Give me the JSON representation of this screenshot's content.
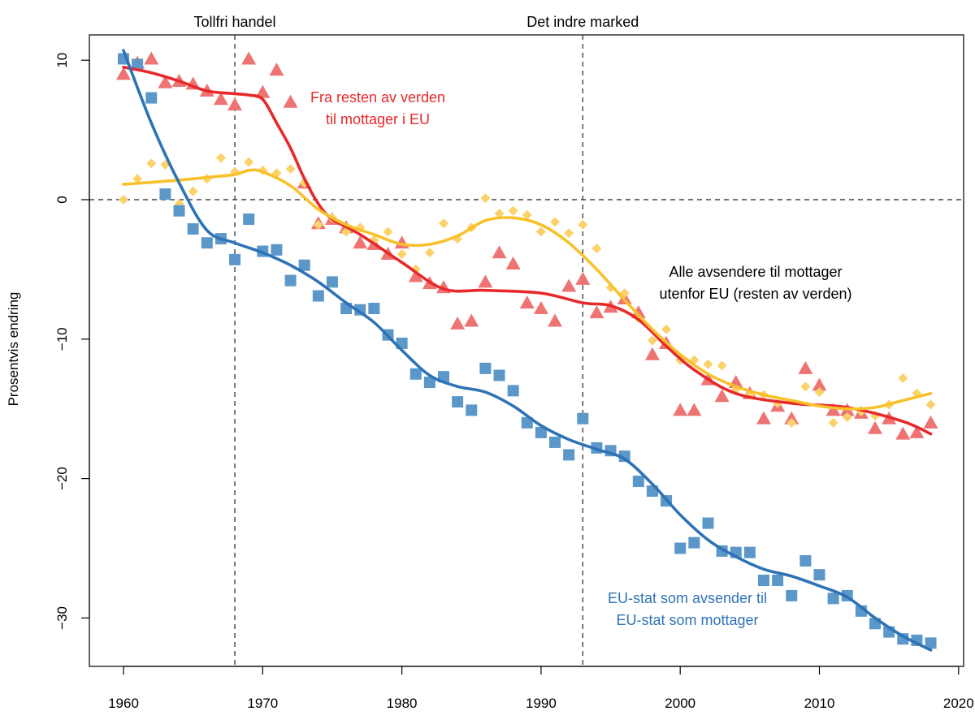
{
  "chart_data": {
    "type": "scatter",
    "ylabel": "Prosentvis endring",
    "xlabel": "",
    "xlim": [
      1960,
      2020
    ],
    "ylim": [
      -33,
      11
    ],
    "x_ticks": [
      1960,
      1970,
      1980,
      1990,
      2000,
      2010,
      2020
    ],
    "y_ticks": [
      10,
      0,
      -10,
      -20,
      -30
    ],
    "y_tick_labels": [
      "10",
      "0",
      "−10",
      "−20",
      "−30"
    ],
    "reference_lines": [
      {
        "axis": "x",
        "value": 1968,
        "label": "Tollfri handel"
      },
      {
        "axis": "x",
        "value": 1993,
        "label": "Det indre marked"
      },
      {
        "axis": "y",
        "value": 0,
        "label": ""
      }
    ],
    "series": [
      {
        "name": "Fra resten av verden til mottager i EU",
        "label_lines": [
          "Fra resten av verden",
          "til mottager i EU"
        ],
        "color": "#e8292b",
        "marker_color": "#ee7474",
        "marker": "triangle",
        "x": [
          1960,
          1961,
          1962,
          1963,
          1964,
          1965,
          1966,
          1967,
          1968,
          1969,
          1970,
          1971,
          1972,
          1973,
          1974,
          1975,
          1976,
          1977,
          1978,
          1979,
          1980,
          1981,
          1982,
          1983,
          1984,
          1985,
          1986,
          1987,
          1988,
          1989,
          1990,
          1991,
          1992,
          1993,
          1994,
          1995,
          1996,
          1997,
          1998,
          1999,
          2000,
          2001,
          2002,
          2003,
          2004,
          2005,
          2006,
          2007,
          2008,
          2009,
          2010,
          2011,
          2012,
          2013,
          2014,
          2015,
          2016,
          2017,
          2018
        ],
        "y": [
          9.0,
          9.8,
          10.1,
          8.4,
          8.5,
          8.3,
          7.8,
          7.2,
          6.8,
          10.1,
          7.7,
          9.3,
          7.0,
          1.2,
          -1.7,
          -1.4,
          -2.0,
          -3.1,
          -3.2,
          -3.9,
          -3.1,
          -5.5,
          -6.0,
          -6.3,
          -8.9,
          -8.7,
          -5.9,
          -3.8,
          -4.6,
          -7.4,
          -7.8,
          -8.7,
          -6.2,
          -5.7,
          -8.1,
          -7.7,
          -7.1,
          -8.1,
          -11.1,
          -10.3,
          -15.1,
          -15.1,
          -12.9,
          -14.1,
          -13.1,
          -13.9,
          -15.7,
          -14.8,
          -15.7,
          -12.1,
          -13.3,
          -15.1,
          -15.1,
          -15.3,
          -16.4,
          -15.7,
          -16.8,
          -16.7,
          -16.0
        ],
        "trend_x": [
          1960,
          1962,
          1964,
          1966,
          1968,
          1969,
          1970,
          1971,
          1972,
          1973,
          1974,
          1975,
          1977,
          1980,
          1983,
          1986,
          1990,
          1993,
          1995,
          1997,
          1999,
          2001,
          2004,
          2008,
          2012,
          2016,
          2018
        ],
        "trend_y": [
          9.5,
          9.1,
          8.5,
          7.8,
          7.6,
          7.5,
          7.2,
          5.5,
          3.7,
          1.5,
          -0.3,
          -1.4,
          -2.5,
          -4.5,
          -6.4,
          -6.5,
          -6.7,
          -7.4,
          -7.6,
          -8.6,
          -10.5,
          -12.2,
          -13.9,
          -14.6,
          -14.9,
          -15.9,
          -16.8
        ]
      },
      {
        "name": "Alle avsendere til mottager utenfor EU (resten av verden)",
        "label_lines": [
          "Alle avsendere til mottager",
          "utenfor EU (resten av verden)"
        ],
        "color": "#f8c12b",
        "marker_color": "#fbd26a",
        "marker": "diamond",
        "x": [
          1960,
          1961,
          1962,
          1963,
          1964,
          1965,
          1966,
          1967,
          1968,
          1969,
          1970,
          1971,
          1972,
          1973,
          1974,
          1975,
          1976,
          1977,
          1978,
          1979,
          1980,
          1981,
          1982,
          1983,
          1984,
          1985,
          1986,
          1987,
          1988,
          1989,
          1990,
          1991,
          1992,
          1993,
          1994,
          1995,
          1996,
          1997,
          1998,
          1999,
          2000,
          2001,
          2002,
          2003,
          2004,
          2005,
          2006,
          2007,
          2008,
          2009,
          2010,
          2011,
          2012,
          2013,
          2014,
          2015,
          2016,
          2017,
          2018
        ],
        "y": [
          0.0,
          1.5,
          2.6,
          2.5,
          -0.3,
          0.6,
          1.5,
          3.0,
          2.0,
          2.7,
          2.1,
          1.9,
          2.2,
          1.2,
          -1.8,
          -1.3,
          -2.3,
          -2.0,
          -2.9,
          -2.3,
          -3.9,
          -5.0,
          -3.8,
          -1.7,
          -2.8,
          -2.0,
          0.1,
          -1.0,
          -0.8,
          -1.1,
          -2.3,
          -1.6,
          -2.4,
          -1.8,
          -3.5,
          -6.3,
          -6.7,
          -8.5,
          -10.1,
          -9.3,
          -11.5,
          -11.5,
          -11.8,
          -11.9,
          -13.6,
          -14.0,
          -14.0,
          -14.6,
          -16.0,
          -13.4,
          -13.8,
          -16.0,
          -15.6,
          -15.2,
          -15.5,
          -14.7,
          -12.8,
          -13.9,
          -14.7
        ],
        "trend_x": [
          1960,
          1964,
          1966,
          1968,
          1969,
          1970,
          1972,
          1974,
          1976,
          1978,
          1980,
          1982,
          1984,
          1986,
          1988,
          1990,
          1992,
          1994,
          1996,
          1998,
          2000,
          2002,
          2004,
          2006,
          2008,
          2010,
          2012,
          2014,
          2016,
          2018
        ],
        "trend_y": [
          1.1,
          1.4,
          1.6,
          1.8,
          2.1,
          2.0,
          1.0,
          -0.7,
          -1.8,
          -2.5,
          -3.2,
          -3.2,
          -2.6,
          -1.5,
          -1.3,
          -1.8,
          -3.1,
          -5.0,
          -7.2,
          -9.3,
          -11.1,
          -12.5,
          -13.4,
          -14.0,
          -14.4,
          -14.8,
          -15.0,
          -14.9,
          -14.4,
          -13.9
        ]
      },
      {
        "name": "EU-stat som avsender til EU-stat som mottager",
        "label_lines": [
          "EU-stat som avsender til",
          "EU-stat som mottager"
        ],
        "color": "#2e73b5",
        "marker_color": "#5c97c9",
        "marker": "square",
        "x": [
          1960,
          1961,
          1962,
          1963,
          1964,
          1965,
          1966,
          1967,
          1968,
          1969,
          1970,
          1971,
          1972,
          1973,
          1974,
          1975,
          1976,
          1977,
          1978,
          1979,
          1980,
          1981,
          1982,
          1983,
          1984,
          1985,
          1986,
          1987,
          1988,
          1989,
          1990,
          1991,
          1992,
          1993,
          1994,
          1995,
          1996,
          1997,
          1998,
          1999,
          2000,
          2001,
          2002,
          2003,
          2004,
          2005,
          2006,
          2007,
          2008,
          2009,
          2010,
          2011,
          2012,
          2013,
          2014,
          2015,
          2016,
          2017,
          2018
        ],
        "y": [
          10.1,
          9.7,
          7.3,
          0.4,
          -0.8,
          -2.1,
          -3.1,
          -2.8,
          -4.3,
          -1.4,
          -3.7,
          -3.6,
          -5.8,
          -4.7,
          -6.9,
          -5.9,
          -7.8,
          -7.9,
          -7.8,
          -9.7,
          -10.3,
          -12.5,
          -13.1,
          -12.7,
          -14.5,
          -15.1,
          -12.1,
          -12.6,
          -13.7,
          -16.0,
          -16.7,
          -17.4,
          -18.3,
          -15.7,
          -17.8,
          -18.0,
          -18.4,
          -20.2,
          -20.9,
          -21.6,
          -25.0,
          -24.6,
          -23.2,
          -25.2,
          -25.3,
          -25.3,
          -27.3,
          -27.3,
          -28.4,
          -25.9,
          -26.9,
          -28.6,
          -28.4,
          -29.5,
          -30.4,
          -31.0,
          -31.5,
          -31.6,
          -31.8
        ],
        "trend_x": [
          1960,
          1962,
          1964,
          1966,
          1968,
          1970,
          1972,
          1974,
          1976,
          1978,
          1980,
          1982,
          1984,
          1986,
          1988,
          1990,
          1992,
          1994,
          1996,
          1998,
          2000,
          2002,
          2004,
          2006,
          2008,
          2010,
          2012,
          2014,
          2016,
          2018
        ],
        "trend_y": [
          10.7,
          5.5,
          1.2,
          -2.2,
          -3.1,
          -3.8,
          -4.7,
          -5.9,
          -7.4,
          -8.8,
          -10.8,
          -12.6,
          -13.4,
          -13.8,
          -14.8,
          -16.2,
          -17.2,
          -17.9,
          -18.6,
          -20.4,
          -22.6,
          -24.4,
          -25.6,
          -26.5,
          -27.0,
          -27.7,
          -28.5,
          -30.0,
          -31.3,
          -32.3
        ]
      }
    ]
  }
}
